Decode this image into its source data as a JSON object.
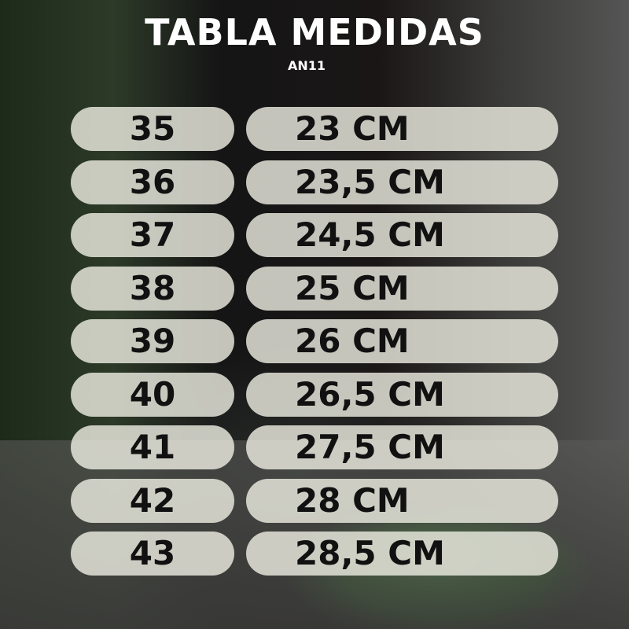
{
  "title": "TABLA MEDIDAS",
  "subtitle": "AN11",
  "rows": [
    {
      "size": "35",
      "cm": "23 CM"
    },
    {
      "size": "36",
      "cm": "23,5 CM"
    },
    {
      "size": "37",
      "cm": "24,5 CM"
    },
    {
      "size": "38",
      "cm": "25 CM"
    },
    {
      "size": "39",
      "cm": "26 CM"
    },
    {
      "size": "40",
      "cm": "26,5 CM"
    },
    {
      "size": "41",
      "cm": "27,5 CM"
    },
    {
      "size": "42",
      "cm": "28 CM"
    },
    {
      "size": "43",
      "cm": "28,5 CM"
    }
  ]
}
